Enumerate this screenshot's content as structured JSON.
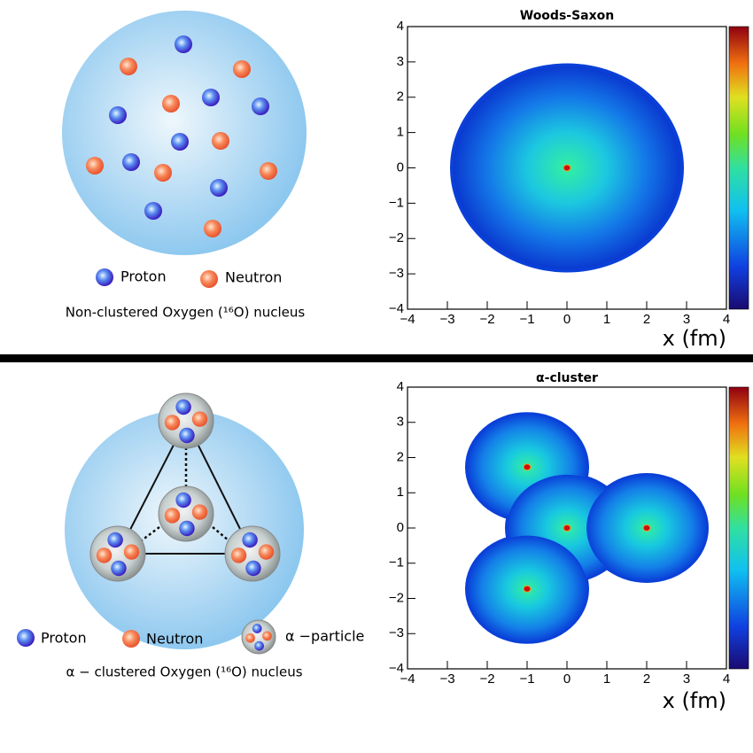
{
  "top_diagram": {
    "legend": [
      "Proton",
      "Neutron"
    ],
    "caption": "Non-clustered Oxygen (¹⁶O) nucleus"
  },
  "bottom_diagram": {
    "legend": [
      "Proton",
      "Neutron",
      "α −particle"
    ],
    "caption": "α − clustered Oxygen (¹⁶O) nucleus"
  },
  "chart_data": [
    {
      "type": "heatmap",
      "title": "Woods-Saxon",
      "x_label": "x (fm)",
      "xlim": [
        -4,
        4
      ],
      "ylim": [
        -4,
        4
      ],
      "xticks": [
        {
          "value": -4,
          "label": "−4"
        },
        {
          "value": -3,
          "label": "−3"
        },
        {
          "value": -2,
          "label": "−2"
        },
        {
          "value": -1,
          "label": "−1"
        },
        0,
        1,
        2,
        3,
        4
      ],
      "yticks": [
        {
          "value": -4,
          "label": "−4"
        },
        {
          "value": -3,
          "label": "−3"
        },
        {
          "value": -2,
          "label": "−2"
        },
        {
          "value": -1,
          "label": "−1"
        },
        0,
        1,
        2,
        3,
        4
      ],
      "hotspots": {
        "x": [
          0
        ],
        "y": [
          0
        ]
      }
    },
    {
      "type": "heatmap",
      "title": "α-cluster",
      "x_label": "x (fm)",
      "xlim": [
        -4,
        4
      ],
      "ylim": [
        -4,
        4
      ],
      "xticks": [
        {
          "value": -4,
          "label": "−4"
        },
        {
          "value": -3,
          "label": "−3"
        },
        {
          "value": -2,
          "label": "−2"
        },
        {
          "value": -1,
          "label": "−1"
        },
        0,
        1,
        2,
        3,
        4
      ],
      "yticks": [
        {
          "value": -4,
          "label": "−4"
        },
        {
          "value": -3,
          "label": "−3"
        },
        {
          "value": -2,
          "label": "−2"
        },
        {
          "value": -1,
          "label": "−1"
        },
        0,
        1,
        2,
        3,
        4
      ],
      "hotspots": {
        "x": [
          -1,
          0,
          2,
          -1
        ],
        "y": [
          1.73,
          0,
          0,
          -1.73
        ]
      }
    }
  ]
}
